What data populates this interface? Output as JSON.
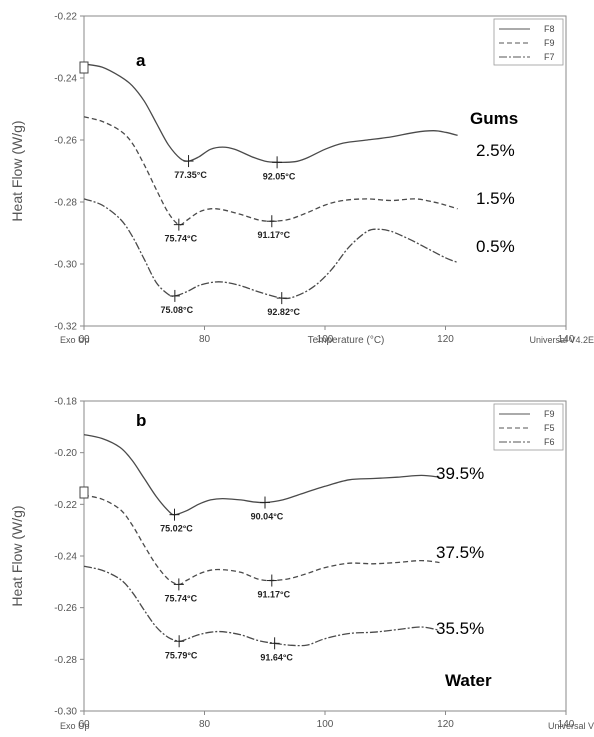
{
  "chart_data": [
    {
      "panel": "a",
      "type": "line",
      "xlabel": "Temperature (°C)",
      "ylabel": "Heat Flow (W/g)",
      "x_ticks": [
        "60",
        "80",
        "100",
        "120",
        "140"
      ],
      "y_ticks": [
        "-0.22",
        "-0.24",
        "-0.26",
        "-0.28",
        "-0.30",
        "-0.32"
      ],
      "xlim": [
        60,
        140
      ],
      "ylim": [
        -0.32,
        -0.22
      ],
      "corner_left": "Exo Up",
      "corner_right": "Universal V4.2E",
      "group_label": "Gums",
      "legend": [
        "F8",
        "F9",
        "F7"
      ],
      "series": [
        {
          "name": "F8",
          "percent_label": "2.5%",
          "points": [
            [
              60,
              -0.2355
            ],
            [
              63,
              -0.2365
            ],
            [
              66,
              -0.2395
            ],
            [
              68,
              -0.2425
            ],
            [
              70,
              -0.2475
            ],
            [
              72,
              -0.2545
            ],
            [
              74,
              -0.2615
            ],
            [
              76,
              -0.266
            ],
            [
              77.35,
              -0.2668
            ],
            [
              79,
              -0.2655
            ],
            [
              81,
              -0.263
            ],
            [
              83,
              -0.2623
            ],
            [
              85,
              -0.263
            ],
            [
              88,
              -0.2655
            ],
            [
              90,
              -0.2668
            ],
            [
              92.05,
              -0.2672
            ],
            [
              95,
              -0.267
            ],
            [
              97,
              -0.2658
            ],
            [
              100,
              -0.263
            ],
            [
              103,
              -0.261
            ],
            [
              107,
              -0.26
            ],
            [
              111,
              -0.259
            ],
            [
              115,
              -0.2575
            ],
            [
              118,
              -0.257
            ],
            [
              120,
              -0.2575
            ],
            [
              122,
              -0.2585
            ]
          ],
          "peaks": [
            {
              "x": 77.35,
              "y": -0.2668,
              "label": "77.35°C"
            },
            {
              "x": 92.05,
              "y": -0.2672,
              "label": "92.05°C"
            }
          ]
        },
        {
          "name": "F9",
          "percent_label": "1.5%",
          "points": [
            [
              60,
              -0.2525
            ],
            [
              63,
              -0.254
            ],
            [
              66,
              -0.257
            ],
            [
              68,
              -0.261
            ],
            [
              70,
              -0.268
            ],
            [
              72,
              -0.276
            ],
            [
              74,
              -0.2835
            ],
            [
              75.74,
              -0.2873
            ],
            [
              77,
              -0.286
            ],
            [
              79,
              -0.2833
            ],
            [
              81,
              -0.2822
            ],
            [
              83,
              -0.2825
            ],
            [
              86,
              -0.284
            ],
            [
              89,
              -0.2858
            ],
            [
              91.17,
              -0.2862
            ],
            [
              94,
              -0.2856
            ],
            [
              97,
              -0.2835
            ],
            [
              100,
              -0.281
            ],
            [
              103,
              -0.2795
            ],
            [
              107,
              -0.279
            ],
            [
              111,
              -0.2795
            ],
            [
              115,
              -0.279
            ],
            [
              118,
              -0.28
            ],
            [
              120,
              -0.281
            ],
            [
              122,
              -0.2822
            ]
          ],
          "peaks": [
            {
              "x": 75.74,
              "y": -0.2873,
              "label": "75.74°C"
            },
            {
              "x": 91.17,
              "y": -0.2862,
              "label": "91.17°C"
            }
          ]
        },
        {
          "name": "F7",
          "percent_label": "0.5%",
          "points": [
            [
              60,
              -0.279
            ],
            [
              63,
              -0.281
            ],
            [
              66,
              -0.2855
            ],
            [
              68,
              -0.291
            ],
            [
              70,
              -0.2985
            ],
            [
              72,
              -0.306
            ],
            [
              74,
              -0.3098
            ],
            [
              75.08,
              -0.3103
            ],
            [
              77,
              -0.309
            ],
            [
              79,
              -0.307
            ],
            [
              81,
              -0.306
            ],
            [
              83,
              -0.3058
            ],
            [
              86,
              -0.307
            ],
            [
              89,
              -0.309
            ],
            [
              92.82,
              -0.311
            ],
            [
              95,
              -0.3105
            ],
            [
              98,
              -0.3075
            ],
            [
              101,
              -0.302
            ],
            [
              104,
              -0.2945
            ],
            [
              107,
              -0.2895
            ],
            [
              109,
              -0.2888
            ],
            [
              111,
              -0.2895
            ],
            [
              114,
              -0.292
            ],
            [
              117,
              -0.295
            ],
            [
              120,
              -0.298
            ],
            [
              122,
              -0.2995
            ]
          ],
          "peaks": [
            {
              "x": 75.08,
              "y": -0.3103,
              "label": "75.08°C"
            },
            {
              "x": 92.82,
              "y": -0.311,
              "label": "92.82°C"
            }
          ]
        }
      ]
    },
    {
      "panel": "b",
      "type": "line",
      "xlabel": "",
      "ylabel": "Heat Flow (W/g)",
      "x_ticks": [
        "60",
        "80",
        "100",
        "120",
        "140"
      ],
      "y_ticks": [
        "-0.18",
        "-0.20",
        "-0.22",
        "-0.24",
        "-0.26",
        "-0.28",
        "-0.30"
      ],
      "xlim": [
        60,
        140
      ],
      "ylim": [
        -0.3,
        -0.18
      ],
      "corner_left": "Exo Up",
      "corner_right": "Universal V",
      "group_label": "Water",
      "legend": [
        "F9",
        "F5",
        "F6"
      ],
      "series": [
        {
          "name": "F9",
          "percent_label": "39.5%",
          "points": [
            [
              60,
              -0.193
            ],
            [
              63,
              -0.1945
            ],
            [
              66,
              -0.198
            ],
            [
              68,
              -0.203
            ],
            [
              70,
              -0.21
            ],
            [
              72,
              -0.217
            ],
            [
              74,
              -0.2225
            ],
            [
              75.02,
              -0.224
            ],
            [
              77,
              -0.2225
            ],
            [
              79,
              -0.22
            ],
            [
              81,
              -0.2183
            ],
            [
              83,
              -0.2178
            ],
            [
              86,
              -0.2183
            ],
            [
              88,
              -0.219
            ],
            [
              90.04,
              -0.2193
            ],
            [
              93,
              -0.2183
            ],
            [
              96,
              -0.216
            ],
            [
              100,
              -0.213
            ],
            [
              104,
              -0.2105
            ],
            [
              108,
              -0.21
            ],
            [
              112,
              -0.2095
            ],
            [
              116,
              -0.2088
            ],
            [
              119,
              -0.2095
            ]
          ],
          "peaks": [
            {
              "x": 75.02,
              "y": -0.224,
              "label": "75.02°C"
            },
            {
              "x": 90.04,
              "y": -0.2193,
              "label": "90.04°C"
            }
          ]
        },
        {
          "name": "F5",
          "percent_label": "37.5%",
          "points": [
            [
              60,
              -0.2165
            ],
            [
              63,
              -0.218
            ],
            [
              66,
              -0.222
            ],
            [
              68,
              -0.228
            ],
            [
              70,
              -0.236
            ],
            [
              72,
              -0.2435
            ],
            [
              74,
              -0.249
            ],
            [
              75.74,
              -0.251
            ],
            [
              77,
              -0.2495
            ],
            [
              79,
              -0.247
            ],
            [
              81,
              -0.2455
            ],
            [
              83,
              -0.2453
            ],
            [
              86,
              -0.2463
            ],
            [
              89,
              -0.249
            ],
            [
              91.17,
              -0.2495
            ],
            [
              94,
              -0.2488
            ],
            [
              97,
              -0.2468
            ],
            [
              100,
              -0.2445
            ],
            [
              104,
              -0.2428
            ],
            [
              108,
              -0.243
            ],
            [
              112,
              -0.2425
            ],
            [
              116,
              -0.2418
            ],
            [
              119,
              -0.2425
            ]
          ],
          "peaks": [
            {
              "x": 75.74,
              "y": -0.251,
              "label": "75.74°C"
            },
            {
              "x": 91.17,
              "y": -0.2495,
              "label": "91.17°C"
            }
          ]
        },
        {
          "name": "F6",
          "percent_label": "35.5%",
          "points": [
            [
              60,
              -0.244
            ],
            [
              63,
              -0.2455
            ],
            [
              66,
              -0.249
            ],
            [
              68,
              -0.254
            ],
            [
              70,
              -0.261
            ],
            [
              72,
              -0.2675
            ],
            [
              74,
              -0.2715
            ],
            [
              75.79,
              -0.273
            ],
            [
              77,
              -0.2722
            ],
            [
              79,
              -0.2705
            ],
            [
              81,
              -0.2695
            ],
            [
              83,
              -0.2693
            ],
            [
              86,
              -0.2705
            ],
            [
              89,
              -0.2728
            ],
            [
              91.64,
              -0.2738
            ],
            [
              94,
              -0.2745
            ],
            [
              97,
              -0.2745
            ],
            [
              100,
              -0.272
            ],
            [
              104,
              -0.27
            ],
            [
              108,
              -0.2695
            ],
            [
              112,
              -0.2685
            ],
            [
              116,
              -0.2675
            ],
            [
              119,
              -0.2688
            ]
          ],
          "peaks": [
            {
              "x": 75.79,
              "y": -0.273,
              "label": "75.79°C"
            },
            {
              "x": 91.64,
              "y": -0.2738,
              "label": "91.64°C"
            }
          ]
        }
      ]
    }
  ]
}
